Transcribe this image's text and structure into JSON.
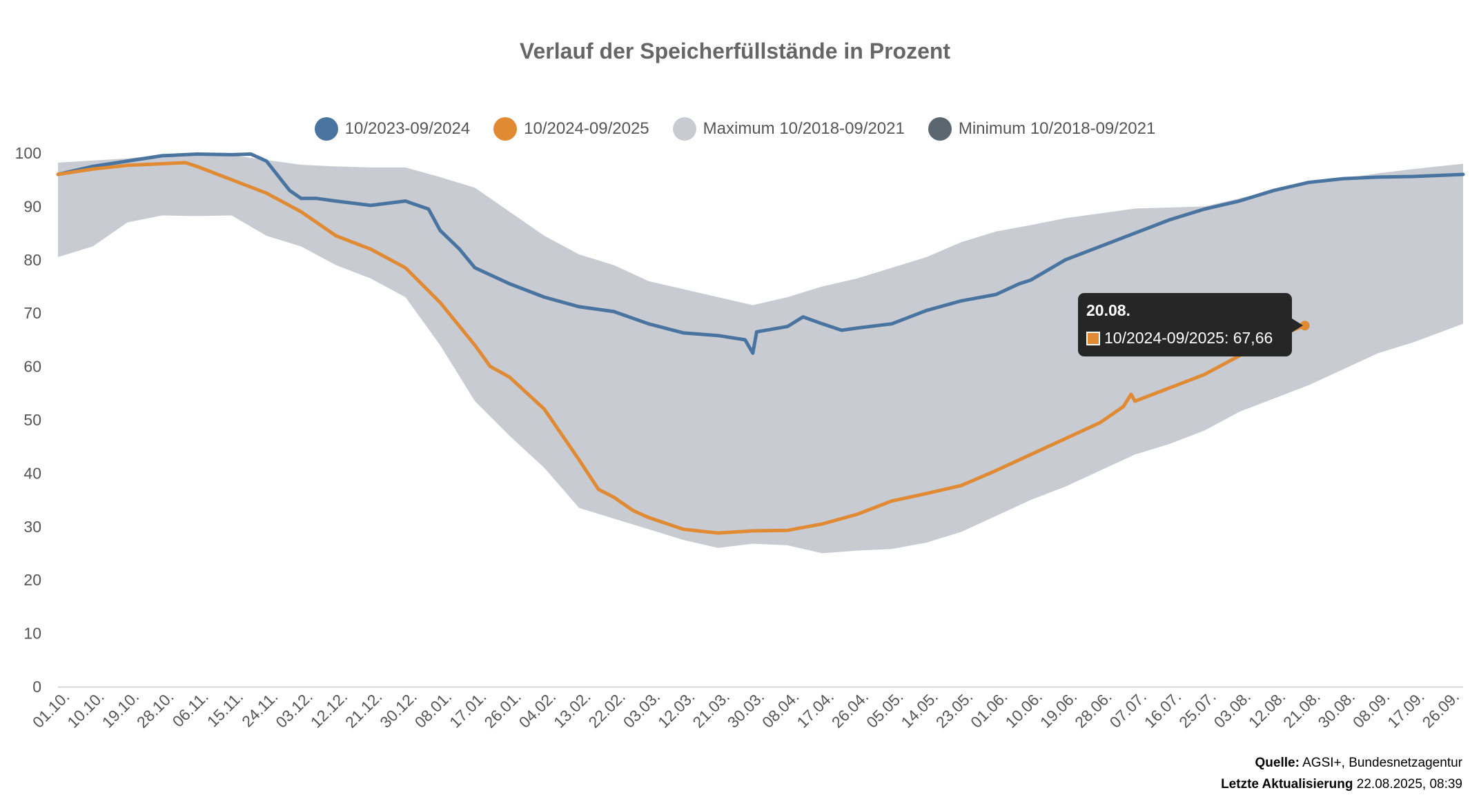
{
  "chart_data": {
    "type": "line",
    "title": "Verlauf der Speicherfüllstände in Prozent",
    "ylim": [
      0,
      100
    ],
    "yticks": [
      0,
      10,
      20,
      30,
      40,
      50,
      60,
      70,
      80,
      90,
      100
    ],
    "x_tick_labels": [
      "01.10.",
      "10.10.",
      "19.10.",
      "28.10.",
      "06.11.",
      "15.11.",
      "24.11.",
      "03.12.",
      "12.12.",
      "21.12.",
      "30.12.",
      "08.01.",
      "17.01.",
      "26.01.",
      "04.02.",
      "13.02.",
      "22.02.",
      "03.03.",
      "12.03.",
      "21.03.",
      "30.03.",
      "08.04.",
      "17.04.",
      "26.04.",
      "05.05.",
      "14.05.",
      "23.05.",
      "01.06.",
      "10.06.",
      "19.06.",
      "28.06.",
      "07.07.",
      "16.07.",
      "25.07.",
      "03.08.",
      "12.08.",
      "21.08.",
      "30.08.",
      "08.09.",
      "17.09.",
      "26.09."
    ],
    "x_days": [
      0,
      9,
      18,
      27,
      36,
      45,
      54,
      63,
      72,
      81,
      90,
      99,
      108,
      117,
      126,
      135,
      144,
      153,
      162,
      171,
      180,
      189,
      198,
      207,
      216,
      225,
      234,
      243,
      252,
      261,
      270,
      279,
      288,
      297,
      306,
      315,
      324,
      333,
      342,
      351,
      360
    ],
    "grid": false,
    "legend_position": "top-center",
    "series": [
      {
        "name": "10/2023-09/2024",
        "color": "#4a74a0",
        "kind": "line",
        "days": [
          0,
          9,
          18,
          27,
          36,
          45,
          50,
          54,
          60,
          63,
          67,
          72,
          81,
          90,
          96,
          99,
          104,
          108,
          117,
          126,
          135,
          144,
          153,
          162,
          171,
          178,
          180,
          181,
          189,
          193,
          198,
          203,
          207,
          216,
          225,
          234,
          243,
          249,
          252,
          261,
          270,
          279,
          288,
          297,
          306,
          315,
          324,
          333,
          342,
          351,
          364
        ],
        "values": [
          96,
          97.5,
          98.5,
          99.5,
          99.8,
          99.7,
          99.8,
          98.5,
          93,
          91.5,
          91.5,
          91,
          90.2,
          91,
          89.5,
          85.5,
          82,
          78.5,
          75.5,
          73,
          71.2,
          70.3,
          68,
          66.3,
          65.8,
          65,
          62.5,
          66.5,
          67.5,
          69.3,
          68,
          66.8,
          67.2,
          68,
          70.5,
          72.3,
          73.5,
          75.5,
          76.2,
          80,
          82.5,
          85,
          87.5,
          89.5,
          91,
          93,
          94.5,
          95.2,
          95.5,
          95.6,
          96
        ]
      },
      {
        "name": "10/2024-09/2025",
        "color": "#e08a34",
        "kind": "line",
        "days": [
          0,
          9,
          18,
          27,
          33,
          36,
          45,
          54,
          63,
          72,
          81,
          90,
          99,
          108,
          112,
          117,
          126,
          135,
          140,
          144,
          149,
          153,
          162,
          171,
          180,
          189,
          198,
          207,
          216,
          225,
          234,
          243,
          252,
          261,
          270,
          276,
          278,
          279,
          288,
          297,
          306,
          315,
          323
        ],
        "values": [
          96,
          97,
          97.7,
          98,
          98.2,
          97.5,
          95,
          92.5,
          89,
          84.5,
          82,
          78.5,
          72,
          64,
          60,
          58,
          52,
          42.5,
          37,
          35.5,
          33,
          31.7,
          29.5,
          28.8,
          29.2,
          29.3,
          30.5,
          32.3,
          34.8,
          36.2,
          37.7,
          40.5,
          43.5,
          46.5,
          49.5,
          52.5,
          54.8,
          53.5,
          56,
          58.5,
          62,
          65.5,
          67.66
        ]
      },
      {
        "name": "Maximum 10/2018-09/2021",
        "color": "#c8ccd2",
        "kind": "band-upper",
        "days": [
          0,
          9,
          18,
          27,
          36,
          45,
          54,
          63,
          72,
          81,
          90,
          99,
          108,
          117,
          126,
          135,
          144,
          153,
          162,
          171,
          180,
          189,
          198,
          207,
          216,
          225,
          234,
          243,
          252,
          261,
          270,
          279,
          288,
          297,
          306,
          315,
          324,
          333,
          342,
          351,
          364
        ],
        "values": [
          98.2,
          98.6,
          99,
          99.6,
          99.8,
          99.6,
          98.7,
          97.8,
          97.5,
          97.3,
          97.3,
          95.5,
          93.5,
          89,
          84.5,
          81,
          79,
          76,
          74.5,
          73,
          71.5,
          73,
          75,
          76.5,
          78.5,
          80.5,
          83.3,
          85.3,
          86.5,
          87.8,
          88.7,
          89.6,
          89.8,
          90,
          91.5,
          93,
          94.5,
          95.2,
          96.2,
          97,
          98
        ]
      },
      {
        "name": "Minimum 10/2018-09/2021",
        "color": "#5a6670",
        "kind": "band-lower",
        "days": [
          0,
          9,
          18,
          27,
          36,
          45,
          54,
          63,
          72,
          81,
          90,
          99,
          108,
          117,
          126,
          135,
          144,
          153,
          162,
          171,
          180,
          189,
          198,
          207,
          216,
          225,
          234,
          243,
          252,
          261,
          270,
          279,
          288,
          297,
          306,
          315,
          324,
          333,
          342,
          351,
          364
        ],
        "values": [
          80.5,
          82.5,
          87,
          88.3,
          88.2,
          88.3,
          84.5,
          82.5,
          79,
          76.5,
          73,
          64,
          53.5,
          47,
          41,
          33.5,
          31.5,
          29.5,
          27.5,
          26,
          26.8,
          26.5,
          25,
          25.5,
          25.8,
          27,
          29,
          32,
          35,
          37.5,
          40.5,
          43.5,
          45.5,
          48,
          51.5,
          54,
          56.5,
          59.5,
          62.5,
          64.5,
          68
        ]
      }
    ],
    "tooltip": {
      "date": "20.08.",
      "series_name": "10/2024-09/2025",
      "text": "10/2024-09/2025: 67,66"
    }
  },
  "footer": {
    "source_label": "Quelle:",
    "source_value": " AGSI+, Bundesnetzagentur",
    "updated_label": "Letzte Aktualisierung",
    "updated_value": " 22.08.2025, 08:39"
  }
}
